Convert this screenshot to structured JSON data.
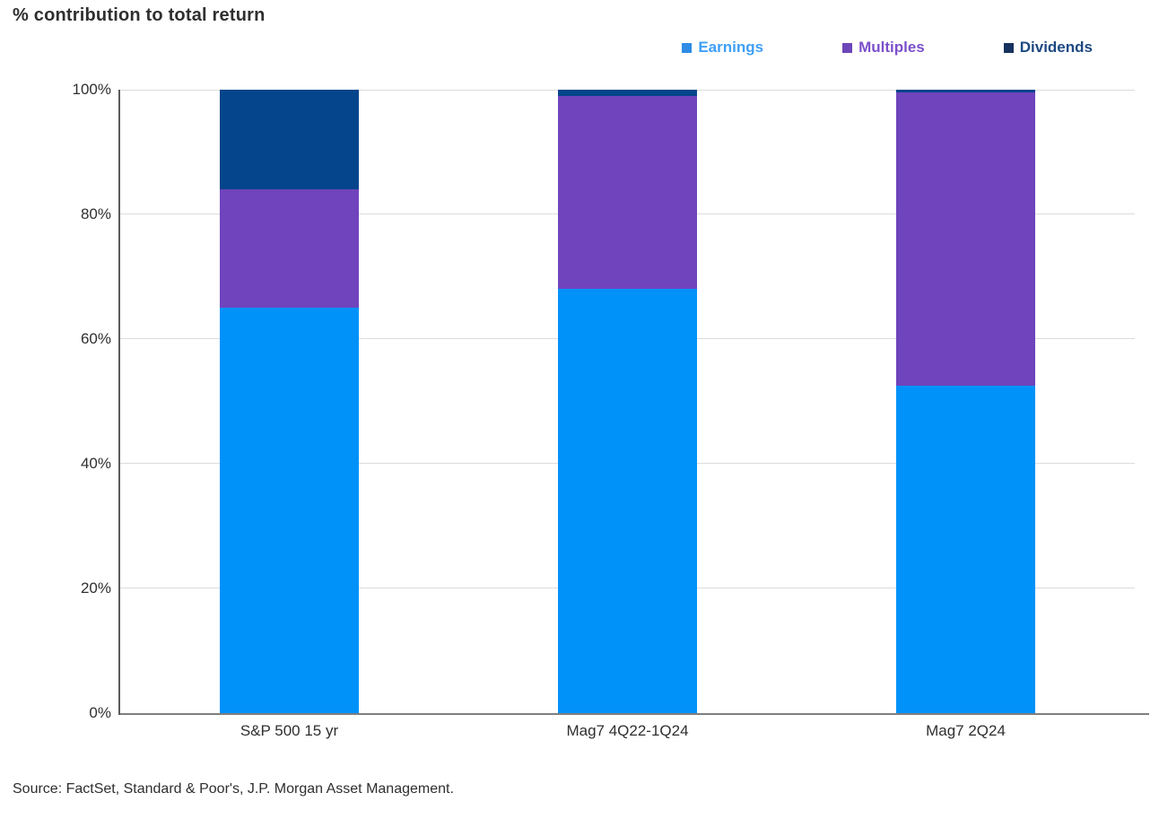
{
  "chart_data": {
    "type": "bar",
    "stacked": true,
    "title": "% contribution to total return",
    "categories": [
      "S&P 500 15 yr",
      "Mag7 4Q22-1Q24",
      "Mag7 2Q24"
    ],
    "series": [
      {
        "name": "Earnings",
        "color": "#0092F9",
        "swatch_color": "#2E8BE6",
        "label_color": "#3FA0F6",
        "values": [
          65,
          68,
          52.5
        ]
      },
      {
        "name": "Multiples",
        "color": "#6F44BC",
        "swatch_color": "#6C46B8",
        "label_color": "#7C50CA",
        "values": [
          19,
          31,
          47
        ]
      },
      {
        "name": "Dividends",
        "color": "#05458B",
        "swatch_color": "#16335F",
        "label_color": "#1D4983",
        "values": [
          16,
          1,
          0.5
        ]
      }
    ],
    "ylim": [
      0,
      100
    ],
    "yticks": [
      "0%",
      "20%",
      "40%",
      "60%",
      "80%",
      "100%"
    ],
    "grid": "horizontal",
    "legend_position": "top-right",
    "gridline_color": "#DCDCDC",
    "axis_color": "#7F7F7F",
    "text_color": "#2F2F2F"
  },
  "source": "Source: FactSet, Standard & Poor's, J.P. Morgan Asset Management."
}
